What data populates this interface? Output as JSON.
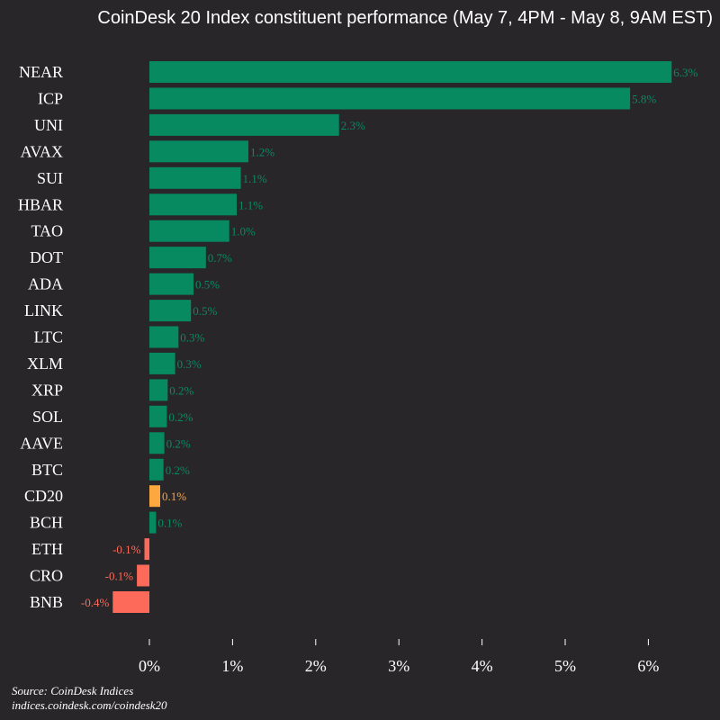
{
  "chart_data": {
    "type": "bar",
    "orientation": "horizontal",
    "title": "CoinDesk 20 Index constituent performance (May 7, 4PM - May 8, 9AM EST)",
    "categories": [
      "NEAR",
      "ICP",
      "UNI",
      "AVAX",
      "SUI",
      "HBAR",
      "TAO",
      "DOT",
      "ADA",
      "LINK",
      "LTC",
      "XLM",
      "XRP",
      "SOL",
      "AAVE",
      "BTC",
      "CD20",
      "BCH",
      "ETH",
      "CRO",
      "BNB"
    ],
    "values": [
      6.28,
      5.78,
      2.28,
      1.19,
      1.1,
      1.05,
      0.96,
      0.68,
      0.53,
      0.5,
      0.35,
      0.31,
      0.22,
      0.21,
      0.18,
      0.17,
      0.13,
      0.08,
      -0.06,
      -0.15,
      -0.44
    ],
    "value_labels": [
      "6.3%",
      "5.8%",
      "2.3%",
      "1.2%",
      "1.1%",
      "1.1%",
      "1.0%",
      "0.7%",
      "0.5%",
      "0.5%",
      "0.3%",
      "0.3%",
      "0.2%",
      "0.2%",
      "0.2%",
      "0.2%",
      "0.1%",
      "0.1%",
      "-0.1%",
      "-0.1%",
      "-0.4%"
    ],
    "highlight_category": "CD20",
    "xlim": [
      -0.5,
      6.5
    ],
    "xticks": [
      0,
      1,
      2,
      3,
      4,
      5,
      6
    ],
    "xtick_labels": [
      "0%",
      "1%",
      "2%",
      "3%",
      "4%",
      "5%",
      "6%"
    ],
    "grid": false,
    "colors": {
      "positive": "#078a60",
      "negative": "#fe6a5a",
      "index": "#fda83f",
      "background": "#29262a",
      "text": "#ffffff"
    }
  },
  "source": {
    "line1": "Source: CoinDesk Indices",
    "line2": "indices.coindesk.com/coindesk20"
  }
}
